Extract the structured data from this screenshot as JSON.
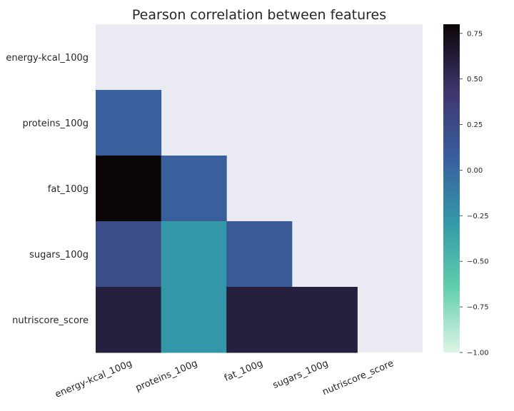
{
  "chart_data": {
    "type": "heatmap",
    "title": "Pearson correlation between features",
    "variables": [
      "energy-kcal_100g",
      "proteins_100g",
      "fat_100g",
      "sugars_100g",
      "nutriscore_score"
    ],
    "mask": "upper-triangle-including-diagonal",
    "cells": [
      {
        "row": "proteins_100g",
        "col": "energy-kcal_100g",
        "value": 0.06
      },
      {
        "row": "fat_100g",
        "col": "energy-kcal_100g",
        "value": 0.8
      },
      {
        "row": "fat_100g",
        "col": "proteins_100g",
        "value": 0.06
      },
      {
        "row": "sugars_100g",
        "col": "energy-kcal_100g",
        "value": 0.22
      },
      {
        "row": "sugars_100g",
        "col": "proteins_100g",
        "value": -0.28
      },
      {
        "row": "sugars_100g",
        "col": "fat_100g",
        "value": 0.12
      },
      {
        "row": "nutriscore_score",
        "col": "energy-kcal_100g",
        "value": 0.6
      },
      {
        "row": "nutriscore_score",
        "col": "proteins_100g",
        "value": -0.28
      },
      {
        "row": "nutriscore_score",
        "col": "fat_100g",
        "value": 0.6
      },
      {
        "row": "nutriscore_score",
        "col": "sugars_100g",
        "value": 0.6
      }
    ],
    "colorbar": {
      "range": [
        -1.0,
        0.8
      ],
      "ticks": [
        0.75,
        0.5,
        0.25,
        0.0,
        -0.25,
        -0.5,
        -0.75,
        -1.0
      ],
      "tick_labels": [
        "0.75",
        "0.50",
        "0.25",
        "0.00",
        "−0.25",
        "−0.50",
        "−0.75",
        "−1.00"
      ],
      "colormap": "mako",
      "stops": [
        "#def5e5",
        "#60ceac",
        "#3497a9",
        "#395d9c",
        "#3e356b",
        "#0b0405"
      ]
    },
    "grid": false,
    "background_color": "#eaeaf2"
  }
}
